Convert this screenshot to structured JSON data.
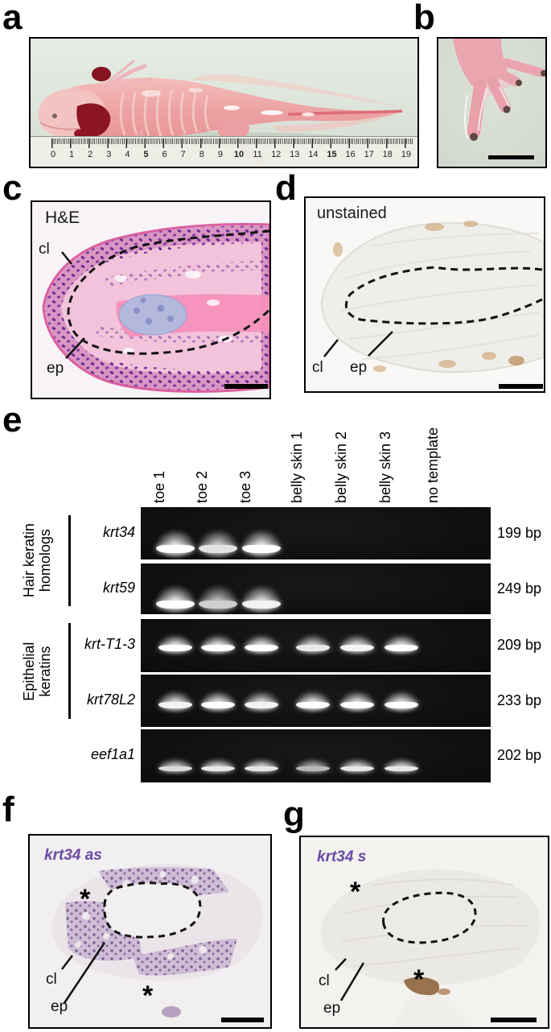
{
  "figure_labels": {
    "a": "a",
    "b": "b",
    "c": "c",
    "d": "d",
    "e": "e",
    "f": "f",
    "g": "g"
  },
  "panel_a": {
    "ruler_numbers": [
      "0",
      "1",
      "2",
      "3",
      "4",
      "5",
      "6",
      "7",
      "8",
      "9",
      "10",
      "11",
      "12",
      "13",
      "14",
      "15",
      "16",
      "17",
      "18",
      "19"
    ],
    "ruler_bold_numbers": [
      "5",
      "10",
      "15"
    ]
  },
  "panel_c": {
    "stain_label": "H&E",
    "cl_label": "cl",
    "ep_label": "ep"
  },
  "panel_d": {
    "stain_label": "unstained",
    "cl_label": "cl",
    "ep_label": "ep"
  },
  "panel_e": {
    "lane_labels": [
      "toe 1",
      "toe 2",
      "toe 3",
      "belly skin 1",
      "belly skin 2",
      "belly skin 3",
      "no template"
    ],
    "groups": [
      {
        "label": "Hair keratin homologs",
        "line1": "Hair keratin",
        "line2": "homologs",
        "genes": [
          "krt34",
          "krt59"
        ]
      },
      {
        "label": "Epithelial keratins",
        "line1": "Epithelial",
        "line2": "keratins",
        "genes": [
          "krt-T1-3",
          "krt78L2"
        ]
      }
    ],
    "rows": [
      {
        "gene": "krt34",
        "amplicon_size": "199 bp",
        "band_intensities": [
          1,
          0.88,
          1,
          0,
          0,
          0,
          0
        ]
      },
      {
        "gene": "krt59",
        "amplicon_size": "249 bp",
        "band_intensities": [
          1,
          0.8,
          0.95,
          0,
          0,
          0,
          0
        ]
      },
      {
        "gene": "krt-T1-3",
        "amplicon_size": "209 bp",
        "band_intensities": [
          1,
          1,
          1,
          0.9,
          0.95,
          1,
          0
        ]
      },
      {
        "gene": "krt78L2",
        "amplicon_size": "233 bp",
        "band_intensities": [
          0.95,
          1,
          0.95,
          1,
          1,
          1,
          0
        ]
      },
      {
        "gene": "eef1a1",
        "amplicon_size": "202 bp",
        "band_intensities": [
          0.85,
          0.9,
          0.9,
          0.7,
          0.9,
          0.9,
          0
        ]
      }
    ]
  },
  "panel_f": {
    "probe_label": "krt34 as",
    "cl_label": "cl",
    "ep_label": "ep",
    "asterisk": "*"
  },
  "panel_g": {
    "probe_label": "krt34 s",
    "cl_label": "cl",
    "ep_label": "ep",
    "asterisk": "*"
  },
  "colors": {
    "probe_label_purple": "#6b4aa2",
    "gel_background": "#0b0b0b",
    "he_stain_pink": "#f2c3da",
    "he_nuclei_purple": "#6e2d92",
    "ish_stain_purple": "#9c79ad"
  }
}
